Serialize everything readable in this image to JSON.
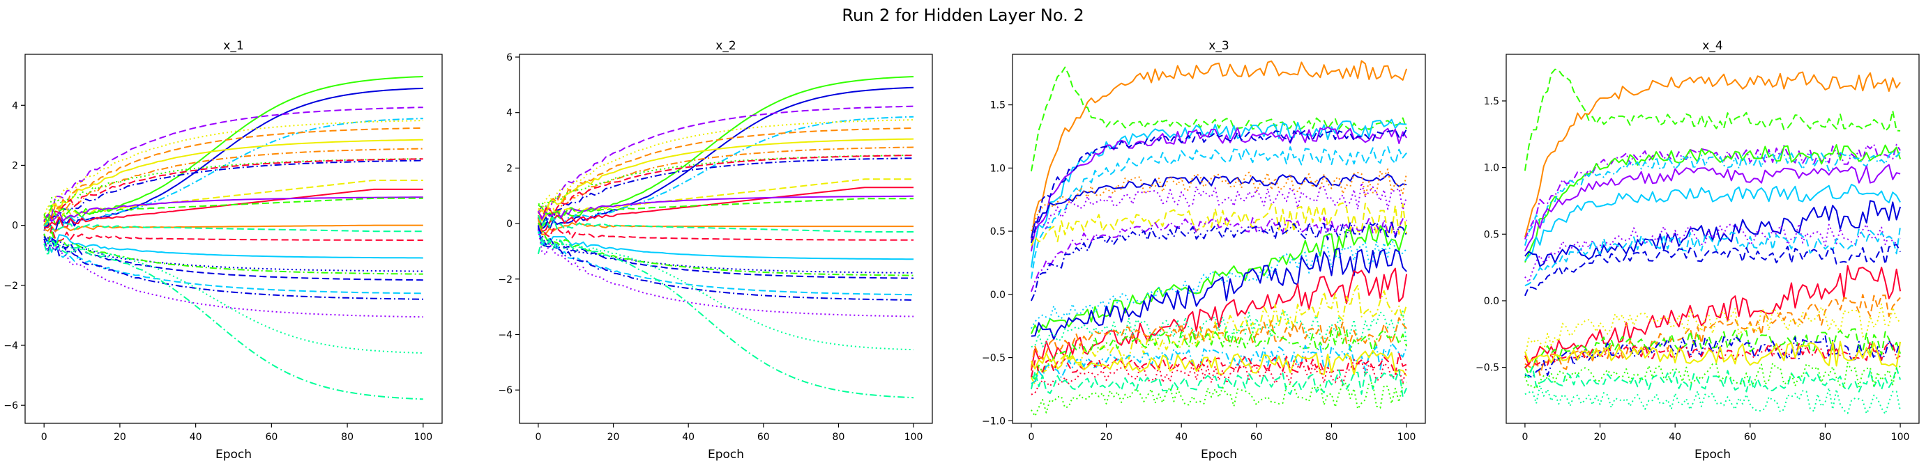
{
  "figure": {
    "title": "Run 2 for Hidden Layer No. 2"
  },
  "chart_data": [
    {
      "type": "line",
      "title": "x_1",
      "xlabel": "Epoch",
      "ylabel": "",
      "xlim": [
        -5,
        105
      ],
      "ylim": [
        -6.6,
        5.7
      ],
      "xticks": [
        0,
        20,
        40,
        60,
        80,
        100
      ],
      "yticks": [
        -6,
        -4,
        -2,
        0,
        2,
        4
      ],
      "grid": false,
      "series": [
        {
          "color": "#33ff00",
          "dash": "solid",
          "start": 0.2,
          "end": 5.15,
          "shape": "sig"
        },
        {
          "color": "#0000dd",
          "dash": "solid",
          "start": 0.0,
          "end": 4.75,
          "shape": "sig"
        },
        {
          "color": "#9900ff",
          "dash": "dashed",
          "start": 0.3,
          "end": 4.0,
          "shape": "sat"
        },
        {
          "color": "#00ccff",
          "dash": "dashdot",
          "start": 0.1,
          "end": 3.7,
          "shape": "sig"
        },
        {
          "color": "#eeee00",
          "dash": "dotted",
          "start": 0.4,
          "end": 3.55,
          "shape": "sat"
        },
        {
          "color": "#ff8800",
          "dash": "dashed",
          "start": 0.2,
          "end": 3.3,
          "shape": "sat"
        },
        {
          "color": "#eeee00",
          "dash": "solid",
          "start": 0.3,
          "end": 2.9,
          "shape": "sat"
        },
        {
          "color": "#ff8800",
          "dash": "dashdot",
          "start": 0.1,
          "end": 2.6,
          "shape": "sat"
        },
        {
          "color": "#33ff00",
          "dash": "dotted",
          "start": 0.5,
          "end": 2.25,
          "shape": "sat"
        },
        {
          "color": "#0000dd",
          "dash": "dashdot",
          "start": 0.0,
          "end": 2.2,
          "shape": "sat"
        },
        {
          "color": "#ff0033",
          "dash": "dashed",
          "start": 0.2,
          "end": 2.25,
          "shape": "sat"
        },
        {
          "color": "#eeee00",
          "dash": "dashed",
          "start": 0.3,
          "end": 1.5,
          "shape": "lin"
        },
        {
          "color": "#ff0033",
          "dash": "solid",
          "start": 0.0,
          "end": 1.2,
          "shape": "lin"
        },
        {
          "color": "#9900ff",
          "dash": "solid",
          "start": 0.2,
          "end": 0.95,
          "shape": "sat"
        },
        {
          "color": "#33ff00",
          "dash": "dashed",
          "start": 0.4,
          "end": 0.9,
          "shape": "lin"
        },
        {
          "color": "#ff8800",
          "dash": "solid",
          "start": -0.1,
          "end": 0.0,
          "shape": "lin"
        },
        {
          "color": "#00ff99",
          "dash": "dashed",
          "start": 0.0,
          "end": -0.2,
          "shape": "lin"
        },
        {
          "color": "#ff0033",
          "dash": "dashed",
          "start": -0.3,
          "end": -0.5,
          "shape": "sat"
        },
        {
          "color": "#00ccff",
          "dash": "solid",
          "start": -0.4,
          "end": -1.1,
          "shape": "sat"
        },
        {
          "color": "#0000dd",
          "dash": "dotted",
          "start": -0.5,
          "end": -1.55,
          "shape": "sat"
        },
        {
          "color": "#33ff00",
          "dash": "dashdot",
          "start": -0.3,
          "end": -1.65,
          "shape": "sat"
        },
        {
          "color": "#0000dd",
          "dash": "dashed",
          "start": -0.4,
          "end": -1.85,
          "shape": "sat"
        },
        {
          "color": "#00ccff",
          "dash": "dashed",
          "start": -0.6,
          "end": -2.3,
          "shape": "sat"
        },
        {
          "color": "#0000dd",
          "dash": "dashdot",
          "start": -0.5,
          "end": -2.5,
          "shape": "sat"
        },
        {
          "color": "#9900ff",
          "dash": "dotted",
          "start": -0.6,
          "end": -3.1,
          "shape": "sat"
        },
        {
          "color": "#00ff99",
          "dash": "dotted",
          "start": -0.7,
          "end": -4.4,
          "shape": "sig"
        },
        {
          "color": "#00ff99",
          "dash": "dashdot",
          "start": -0.7,
          "end": -6.0,
          "shape": "sig"
        }
      ]
    },
    {
      "type": "line",
      "title": "x_2",
      "xlabel": "Epoch",
      "ylabel": "",
      "xlim": [
        -5,
        105
      ],
      "ylim": [
        -7.2,
        6.1
      ],
      "xticks": [
        0,
        20,
        40,
        60,
        80,
        100
      ],
      "yticks": [
        -6,
        -4,
        -2,
        0,
        2,
        4,
        6
      ],
      "grid": false,
      "series": [
        {
          "color": "#33ff00",
          "dash": "solid",
          "start": 0.2,
          "end": 5.5,
          "shape": "sig"
        },
        {
          "color": "#0000dd",
          "dash": "solid",
          "start": 0.0,
          "end": 5.1,
          "shape": "sig"
        },
        {
          "color": "#9900ff",
          "dash": "dashed",
          "start": 0.3,
          "end": 4.3,
          "shape": "sat"
        },
        {
          "color": "#00ccff",
          "dash": "dashdot",
          "start": 0.1,
          "end": 4.0,
          "shape": "sig"
        },
        {
          "color": "#eeee00",
          "dash": "dotted",
          "start": 0.4,
          "end": 3.8,
          "shape": "sat"
        },
        {
          "color": "#ff8800",
          "dash": "dashed",
          "start": 0.2,
          "end": 3.5,
          "shape": "sat"
        },
        {
          "color": "#eeee00",
          "dash": "solid",
          "start": 0.3,
          "end": 3.1,
          "shape": "sat"
        },
        {
          "color": "#ff8800",
          "dash": "dashdot",
          "start": 0.1,
          "end": 2.8,
          "shape": "sat"
        },
        {
          "color": "#33ff00",
          "dash": "dotted",
          "start": 0.5,
          "end": 2.5,
          "shape": "sat"
        },
        {
          "color": "#0000dd",
          "dash": "dashdot",
          "start": 0.0,
          "end": 2.4,
          "shape": "sat"
        },
        {
          "color": "#ff0033",
          "dash": "dashed",
          "start": 0.2,
          "end": 2.5,
          "shape": "sat"
        },
        {
          "color": "#eeee00",
          "dash": "dashed",
          "start": 0.3,
          "end": 1.6,
          "shape": "lin"
        },
        {
          "color": "#ff0033",
          "dash": "solid",
          "start": 0.0,
          "end": 1.3,
          "shape": "lin"
        },
        {
          "color": "#9900ff",
          "dash": "solid",
          "start": 0.2,
          "end": 1.0,
          "shape": "sat"
        },
        {
          "color": "#33ff00",
          "dash": "dashed",
          "start": 0.4,
          "end": 0.9,
          "shape": "lin"
        },
        {
          "color": "#ff8800",
          "dash": "solid",
          "start": -0.1,
          "end": -0.1,
          "shape": "lin"
        },
        {
          "color": "#00ff99",
          "dash": "dashed",
          "start": 0.0,
          "end": -0.3,
          "shape": "lin"
        },
        {
          "color": "#ff0033",
          "dash": "dashed",
          "start": -0.3,
          "end": -0.6,
          "shape": "sat"
        },
        {
          "color": "#00ccff",
          "dash": "solid",
          "start": -0.4,
          "end": -1.3,
          "shape": "sat"
        },
        {
          "color": "#0000dd",
          "dash": "dotted",
          "start": -0.5,
          "end": -1.8,
          "shape": "sat"
        },
        {
          "color": "#33ff00",
          "dash": "dashdot",
          "start": -0.3,
          "end": -1.9,
          "shape": "sat"
        },
        {
          "color": "#0000dd",
          "dash": "dashed",
          "start": -0.4,
          "end": -2.0,
          "shape": "sat"
        },
        {
          "color": "#00ccff",
          "dash": "dashed",
          "start": -0.6,
          "end": -2.6,
          "shape": "sat"
        },
        {
          "color": "#0000dd",
          "dash": "dashdot",
          "start": -0.5,
          "end": -2.8,
          "shape": "sat"
        },
        {
          "color": "#9900ff",
          "dash": "dotted",
          "start": -0.6,
          "end": -3.4,
          "shape": "sat"
        },
        {
          "color": "#00ff99",
          "dash": "dotted",
          "start": -0.7,
          "end": -4.7,
          "shape": "sig"
        },
        {
          "color": "#00ff99",
          "dash": "dashdot",
          "start": -0.7,
          "end": -6.5,
          "shape": "sig"
        }
      ]
    },
    {
      "type": "line",
      "title": "x_3",
      "xlabel": "Epoch",
      "ylabel": "",
      "xlim": [
        -5,
        105
      ],
      "ylim": [
        -1.02,
        1.9
      ],
      "xticks": [
        0,
        20,
        40,
        60,
        80,
        100
      ],
      "yticks": [
        -1.0,
        -0.5,
        0.0,
        0.5,
        1.0,
        1.5
      ],
      "grid": false,
      "series": [
        {
          "color": "#ff8800",
          "dash": "solid",
          "start": 0.5,
          "end": 1.78,
          "shape": "fast",
          "noise": 0.03
        },
        {
          "color": "#33ff00",
          "dash": "dashed",
          "start": 1.0,
          "end": 1.35,
          "shape": "hump",
          "noise": 0.02
        },
        {
          "color": "#00ccff",
          "dash": "solid",
          "start": 0.3,
          "end": 1.3,
          "shape": "fast",
          "noise": 0.03
        },
        {
          "color": "#9900ff",
          "dash": "solid",
          "start": 0.4,
          "end": 1.26,
          "shape": "fast",
          "noise": 0.03
        },
        {
          "color": "#0000dd",
          "dash": "dashed",
          "start": 0.5,
          "end": 1.25,
          "shape": "fast",
          "noise": 0.02
        },
        {
          "color": "#00ccff",
          "dash": "dashed",
          "start": 0.2,
          "end": 1.1,
          "shape": "fast",
          "noise": 0.03
        },
        {
          "color": "#0000dd",
          "dash": "solid",
          "start": 0.5,
          "end": 0.9,
          "shape": "fast",
          "noise": 0.02
        },
        {
          "color": "#ff8800",
          "dash": "dotted",
          "start": 0.6,
          "end": 0.88,
          "shape": "fast",
          "noise": 0.04
        },
        {
          "color": "#9900ff",
          "dash": "dotted",
          "start": 0.5,
          "end": 0.78,
          "shape": "fast",
          "noise": 0.04
        },
        {
          "color": "#eeee00",
          "dash": "dashed",
          "start": 0.4,
          "end": 0.6,
          "shape": "fast",
          "noise": 0.05
        },
        {
          "color": "#9900ff",
          "dash": "dashdot",
          "start": 0.1,
          "end": 0.55,
          "shape": "fast",
          "noise": 0.03
        },
        {
          "color": "#0000dd",
          "dash": "dashdot",
          "start": 0.0,
          "end": 0.5,
          "shape": "fast",
          "noise": 0.03
        },
        {
          "color": "#33ff00",
          "dash": "solid",
          "start": -0.3,
          "end": 0.45,
          "shape": "lin",
          "noise": 0.04
        },
        {
          "color": "#00ccff",
          "dash": "dotted",
          "start": -0.2,
          "end": 0.35,
          "shape": "lin",
          "noise": 0.04
        },
        {
          "color": "#0000dd",
          "dash": "solid",
          "start": -0.3,
          "end": 0.28,
          "shape": "lin",
          "noise": 0.05
        },
        {
          "color": "#ff0033",
          "dash": "solid",
          "start": -0.5,
          "end": 0.08,
          "shape": "lin",
          "noise": 0.05
        },
        {
          "color": "#eeee00",
          "dash": "dashdot",
          "start": -0.6,
          "end": -0.05,
          "shape": "lin",
          "noise": 0.05
        },
        {
          "color": "#00ff99",
          "dash": "dotted",
          "start": -0.4,
          "end": -0.25,
          "shape": "fast",
          "noise": 0.05
        },
        {
          "color": "#ff8800",
          "dash": "dashed",
          "start": -0.5,
          "end": -0.3,
          "shape": "fast",
          "noise": 0.04
        },
        {
          "color": "#33ff00",
          "dash": "dashdot",
          "start": -0.6,
          "end": -0.35,
          "shape": "fast",
          "noise": 0.04
        },
        {
          "color": "#00ccff",
          "dash": "dashdot",
          "start": -0.7,
          "end": -0.5,
          "shape": "fast",
          "noise": 0.04
        },
        {
          "color": "#ff0033",
          "dash": "dashed",
          "start": -0.6,
          "end": -0.55,
          "shape": "fast",
          "noise": 0.03
        },
        {
          "color": "#eeee00",
          "dash": "solid",
          "start": -0.5,
          "end": -0.55,
          "shape": "fast",
          "noise": 0.04
        },
        {
          "color": "#ff0033",
          "dash": "dotted",
          "start": -0.8,
          "end": -0.62,
          "shape": "fast",
          "noise": 0.04
        },
        {
          "color": "#00ff99",
          "dash": "dashed",
          "start": -0.7,
          "end": -0.7,
          "shape": "fast",
          "noise": 0.04
        },
        {
          "color": "#33ff00",
          "dash": "dotted",
          "start": -0.9,
          "end": -0.8,
          "shape": "fast",
          "noise": 0.04
        }
      ]
    },
    {
      "type": "line",
      "title": "x_4",
      "xlabel": "Epoch",
      "ylabel": "",
      "xlim": [
        -5,
        105
      ],
      "ylim": [
        -0.92,
        1.85
      ],
      "xticks": [
        0,
        20,
        40,
        60,
        80,
        100
      ],
      "yticks": [
        -0.5,
        0.0,
        0.5,
        1.0,
        1.5
      ],
      "grid": false,
      "series": [
        {
          "color": "#ff8800",
          "dash": "solid",
          "start": 0.5,
          "end": 1.65,
          "shape": "fast",
          "noise": 0.03
        },
        {
          "color": "#33ff00",
          "dash": "dashed",
          "start": 0.9,
          "end": 1.35,
          "shape": "hump",
          "noise": 0.03
        },
        {
          "color": "#9900ff",
          "dash": "dashdot",
          "start": 0.5,
          "end": 1.1,
          "shape": "fast",
          "noise": 0.03
        },
        {
          "color": "#33ff00",
          "dash": "solid",
          "start": 0.3,
          "end": 1.1,
          "shape": "fast",
          "noise": 0.03
        },
        {
          "color": "#00ccff",
          "dash": "dashdot",
          "start": 0.4,
          "end": 1.05,
          "shape": "fast",
          "noise": 0.03
        },
        {
          "color": "#9900ff",
          "dash": "solid",
          "start": 0.4,
          "end": 0.95,
          "shape": "fast",
          "noise": 0.03
        },
        {
          "color": "#00ccff",
          "dash": "solid",
          "start": 0.3,
          "end": 0.8,
          "shape": "fast",
          "noise": 0.03
        },
        {
          "color": "#0000dd",
          "dash": "solid",
          "start": 0.3,
          "end": 0.65,
          "shape": "lin",
          "noise": 0.04
        },
        {
          "color": "#9900ff",
          "dash": "dotted",
          "start": 0.2,
          "end": 0.5,
          "shape": "fast",
          "noise": 0.04
        },
        {
          "color": "#00ccff",
          "dash": "dashed",
          "start": 0.1,
          "end": 0.45,
          "shape": "fast",
          "noise": 0.04
        },
        {
          "color": "#0000dd",
          "dash": "dashed",
          "start": 0.0,
          "end": 0.35,
          "shape": "fast",
          "noise": 0.03
        },
        {
          "color": "#ff0033",
          "dash": "solid",
          "start": -0.4,
          "end": 0.15,
          "shape": "lin",
          "noise": 0.05
        },
        {
          "color": "#ff8800",
          "dash": "dashed",
          "start": -0.5,
          "end": -0.05,
          "shape": "lin",
          "noise": 0.04
        },
        {
          "color": "#eeee00",
          "dash": "dotted",
          "start": -0.4,
          "end": -0.15,
          "shape": "fast",
          "noise": 0.05
        },
        {
          "color": "#33ff00",
          "dash": "dashed",
          "start": -0.5,
          "end": -0.3,
          "shape": "fast",
          "noise": 0.04
        },
        {
          "color": "#0000dd",
          "dash": "dashdot",
          "start": -0.6,
          "end": -0.35,
          "shape": "fast",
          "noise": 0.04
        },
        {
          "color": "#ff0033",
          "dash": "dashdot",
          "start": -0.5,
          "end": -0.38,
          "shape": "fast",
          "noise": 0.03
        },
        {
          "color": "#eeee00",
          "dash": "solid",
          "start": -0.4,
          "end": -0.4,
          "shape": "fast",
          "noise": 0.04
        },
        {
          "color": "#00ff99",
          "dash": "dashed",
          "start": -0.6,
          "end": -0.6,
          "shape": "fast",
          "noise": 0.04
        },
        {
          "color": "#00ff99",
          "dash": "dotted",
          "start": -0.7,
          "end": -0.75,
          "shape": "fast",
          "noise": 0.04
        },
        {
          "color": "#33ff00",
          "dash": "dotted",
          "start": -0.6,
          "end": -0.55,
          "shape": "fast",
          "noise": 0.04
        }
      ]
    }
  ]
}
